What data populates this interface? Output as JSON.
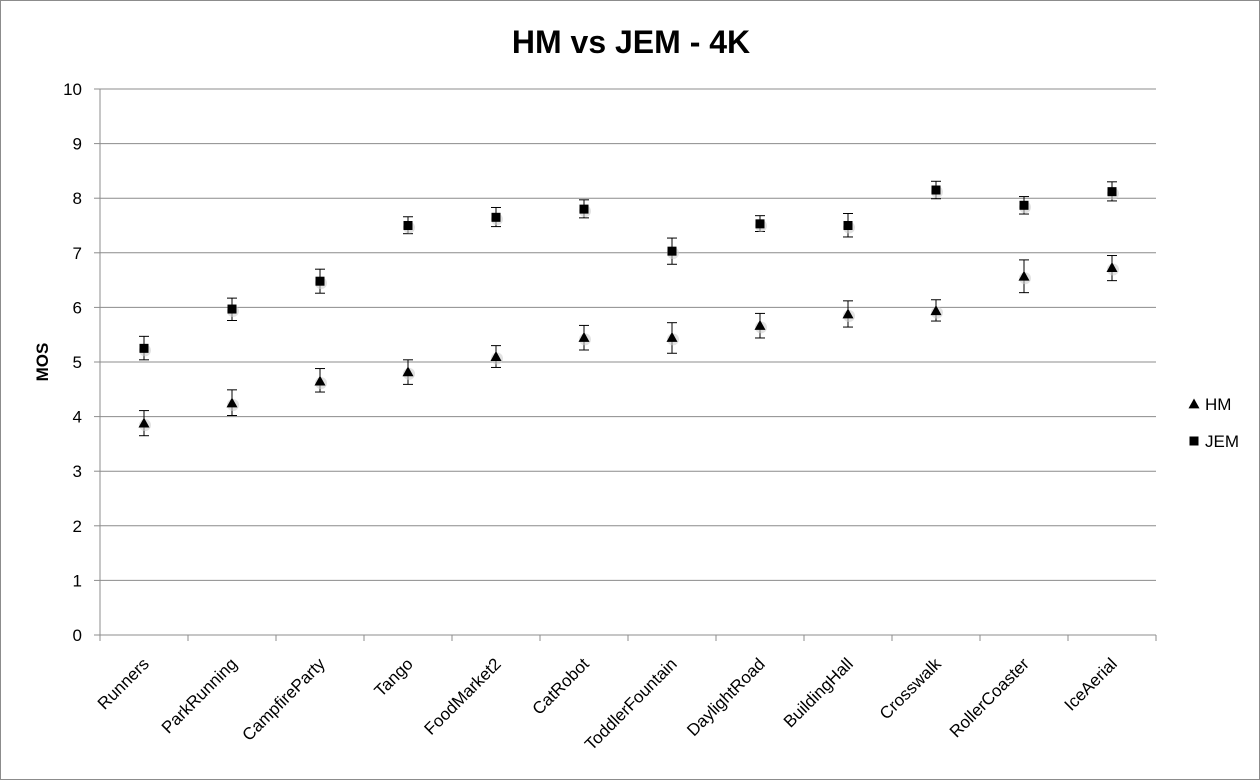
{
  "chart_data": {
    "type": "scatter",
    "title": "HM vs JEM - 4K",
    "ylabel": "MOS",
    "xlabel": "",
    "ylim": [
      0,
      10
    ],
    "yticks": [
      0,
      1,
      2,
      3,
      4,
      5,
      6,
      7,
      8,
      9,
      10
    ],
    "grid": true,
    "legend_position": "right",
    "categories": [
      "Runners",
      "ParkRunning",
      "CampfireParty",
      "Tango",
      "FoodMarket2",
      "CatRobot",
      "ToddlerFountain",
      "DaylightRoad",
      "BuildingHall",
      "Crosswalk",
      "RollerCoaster",
      "IceAerial"
    ],
    "series": [
      {
        "name": "HM",
        "marker": "triangle",
        "color": "#000000",
        "values": [
          3.88,
          4.25,
          4.65,
          4.82,
          5.1,
          5.45,
          5.45,
          5.67,
          5.88,
          5.94,
          6.57,
          6.73
        ],
        "error_low": [
          3.65,
          4.02,
          4.45,
          4.59,
          4.9,
          5.22,
          5.16,
          5.44,
          5.64,
          5.75,
          6.27,
          6.49
        ],
        "error_high": [
          4.11,
          4.49,
          4.88,
          5.04,
          5.3,
          5.67,
          5.72,
          5.89,
          6.12,
          6.14,
          6.87,
          6.95
        ]
      },
      {
        "name": "JEM",
        "marker": "square",
        "color": "#000000",
        "values": [
          5.25,
          5.97,
          6.48,
          7.5,
          7.65,
          7.8,
          7.03,
          7.53,
          7.5,
          8.15,
          7.87,
          8.12
        ],
        "error_low": [
          5.04,
          5.76,
          6.26,
          7.35,
          7.48,
          7.64,
          6.79,
          7.39,
          7.29,
          7.99,
          7.71,
          7.95
        ],
        "error_high": [
          5.47,
          6.17,
          6.7,
          7.66,
          7.83,
          7.97,
          7.27,
          7.68,
          7.72,
          8.31,
          8.03,
          8.3
        ]
      }
    ]
  }
}
